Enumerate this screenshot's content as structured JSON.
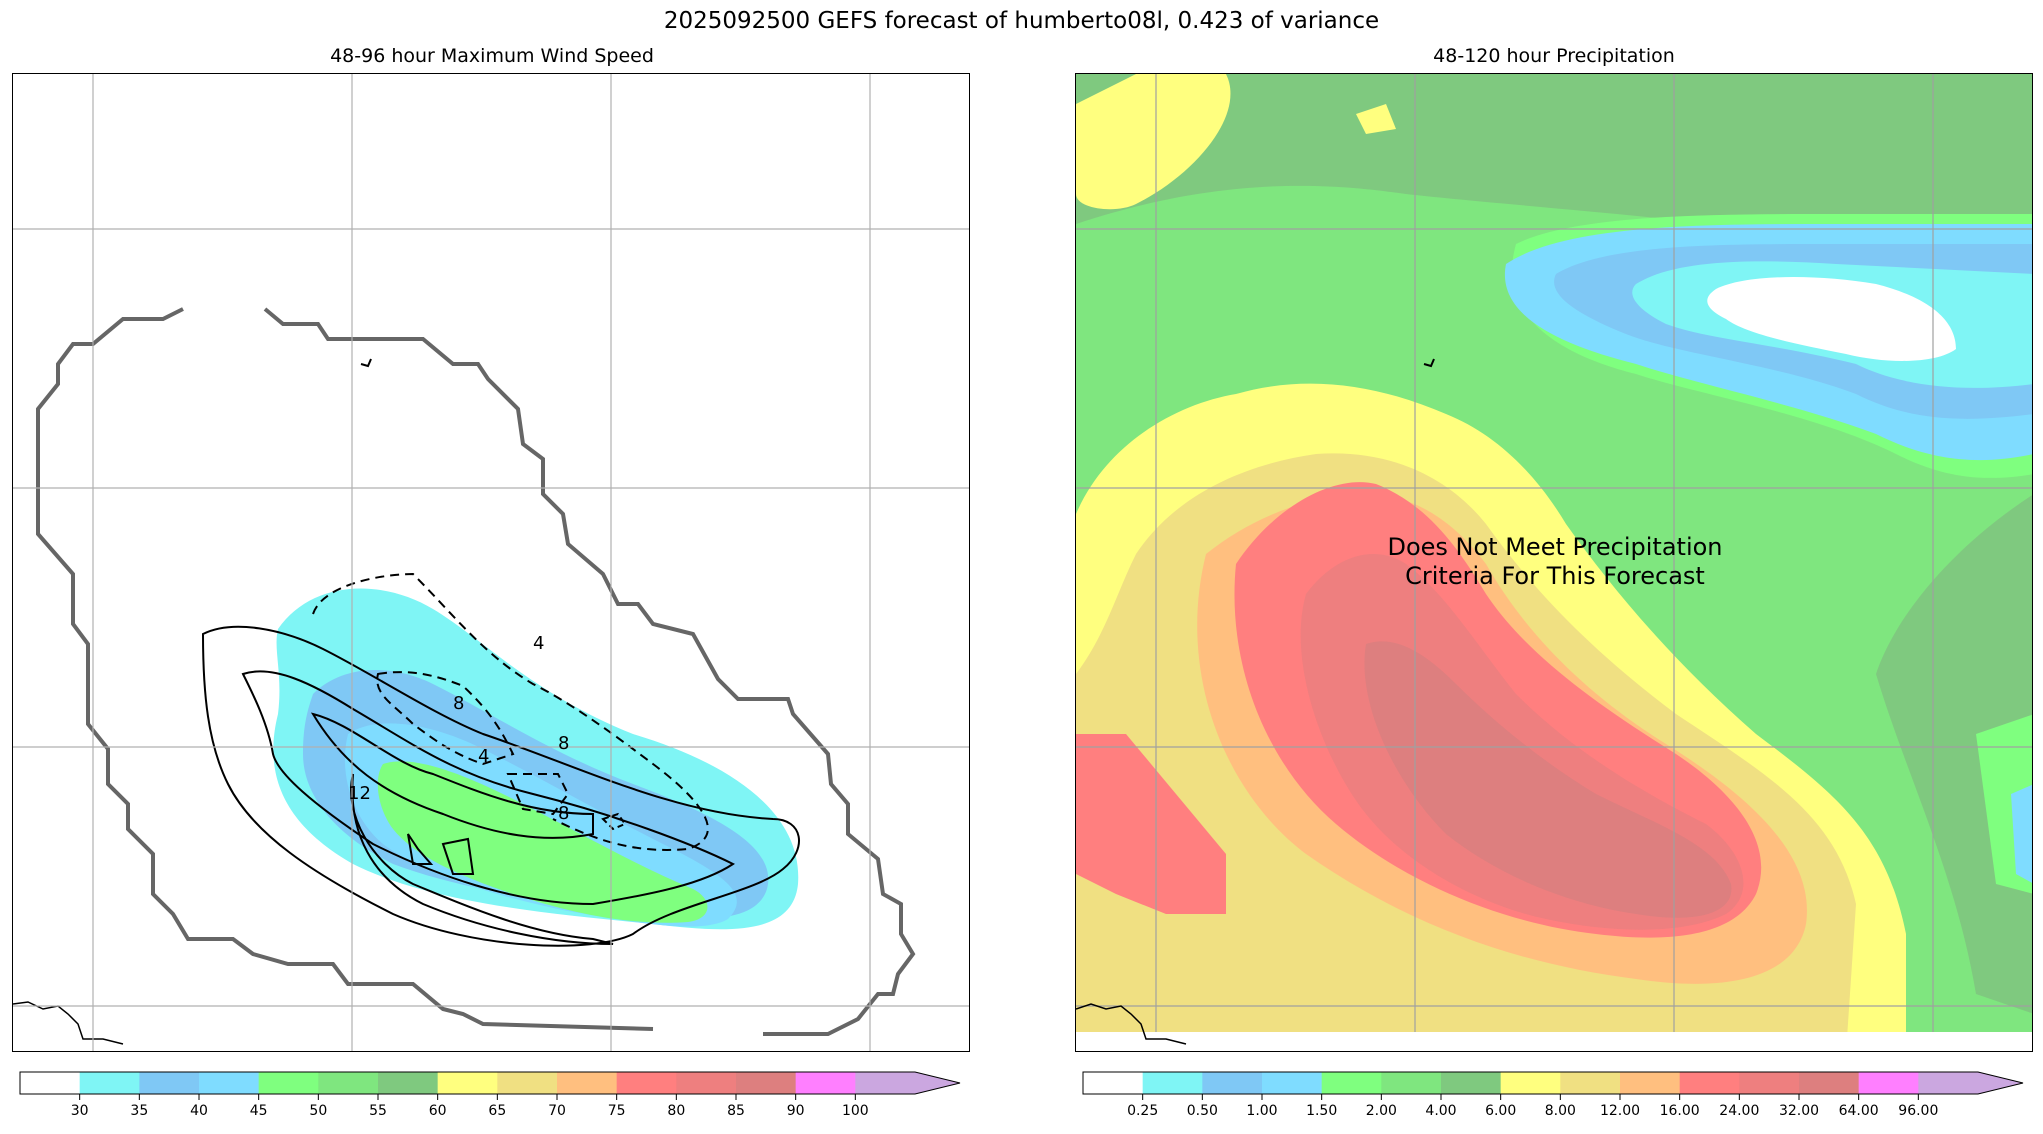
{
  "figure": {
    "suptitle": "2025092500 GEFS forecast of humberto08l, 0.423 of variance"
  },
  "left_panel": {
    "title": "48-96 hour Maximum Wind Speed",
    "contour_labels": [
      "4",
      "8",
      "8",
      "4",
      "8",
      "12"
    ],
    "colorbar": {
      "colors": [
        "#ffffff",
        "#7ff5f5",
        "#7fc8f5",
        "#7fdcff",
        "#7fff7f",
        "#7fe67f",
        "#7fc97f",
        "#ffff7f",
        "#f0e082",
        "#ffbf7f",
        "#ff7f7f",
        "#ee7f7f",
        "#dd7f7f",
        "#ff7fff",
        "#cba7e0"
      ],
      "tick_labels": [
        "30",
        "35",
        "40",
        "45",
        "50",
        "55",
        "60",
        "65",
        "70",
        "75",
        "80",
        "85",
        "90",
        "100"
      ],
      "extend": "max"
    }
  },
  "right_panel": {
    "title": "48-120 hour Precipitation",
    "overlay_text": "Does Not Meet Precipitation\nCriteria For This Forecast",
    "colorbar": {
      "colors": [
        "#ffffff",
        "#7ff5f5",
        "#7fc8f5",
        "#7fdcff",
        "#7fff7f",
        "#7fe67f",
        "#7fc97f",
        "#ffff7f",
        "#f0e082",
        "#ffbf7f",
        "#ff7f7f",
        "#ee7f7f",
        "#dd7f7f",
        "#ff7fff",
        "#cba7e0"
      ],
      "tick_labels": [
        "0.25",
        "0.50",
        "1.00",
        "1.50",
        "2.00",
        "4.00",
        "6.00",
        "8.00",
        "12.00",
        "16.00",
        "24.00",
        "32.00",
        "64.00",
        "96.00"
      ],
      "extend": "max"
    }
  }
}
